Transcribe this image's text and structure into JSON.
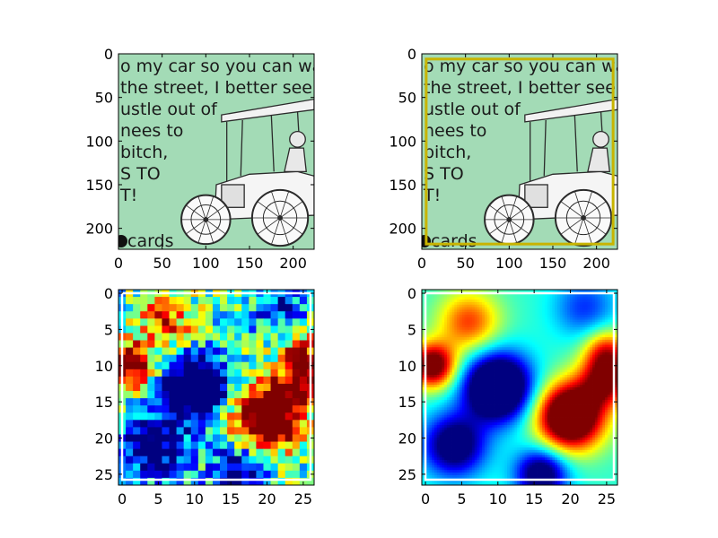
{
  "chart_data": [
    {
      "type": "image",
      "panel": "top-left",
      "xlim": [
        0,
        224
      ],
      "ylim": [
        224,
        0
      ],
      "xticks": [
        0,
        50,
        100,
        150,
        200
      ],
      "yticks": [
        0,
        50,
        100,
        150,
        200
      ],
      "image_text": {
        "lines": [
          "o my car so you can walk",
          "the street, I better see",
          "ustle out of",
          "nees to",
          "bitch,",
          "S TO",
          "T!"
        ],
        "brand": "cards",
        "background": "#a3dbb6"
      }
    },
    {
      "type": "image",
      "panel": "top-right",
      "xlim": [
        0,
        224
      ],
      "ylim": [
        224,
        0
      ],
      "xticks": [
        0,
        50,
        100,
        150,
        200
      ],
      "yticks": [
        0,
        50,
        100,
        150,
        200
      ],
      "image_text": {
        "lines": [
          "o my car so you can walk",
          "the street, I better see",
          "ustle out of",
          "nees to",
          "bitch,",
          "S TO",
          "T!"
        ],
        "brand": "cards",
        "background": "#a3dbb6"
      },
      "box": {
        "x0": 5,
        "y0": 6,
        "x1": 219,
        "y1": 218,
        "color": "#c8b400"
      }
    },
    {
      "type": "heatmap",
      "panel": "bottom-left",
      "interpolation": "nearest",
      "colormap": "jet",
      "size": 27,
      "xlim": [
        0,
        26
      ],
      "ylim": [
        26,
        0
      ],
      "xticks": [
        0,
        5,
        10,
        15,
        20,
        25
      ],
      "yticks": [
        0,
        5,
        10,
        15,
        20,
        25
      ]
    },
    {
      "type": "heatmap",
      "panel": "bottom-right",
      "interpolation": "smooth",
      "colormap": "jet",
      "size": 27,
      "xlim": [
        0,
        26
      ],
      "ylim": [
        26,
        0
      ],
      "xticks": [
        0,
        5,
        10,
        15,
        20,
        25
      ],
      "yticks": [
        0,
        5,
        10,
        15,
        20,
        25
      ]
    }
  ]
}
